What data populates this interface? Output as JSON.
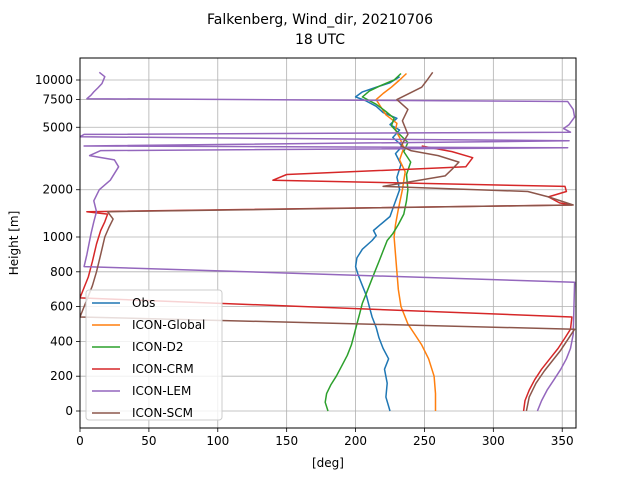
{
  "chart_data": {
    "type": "line",
    "title": "Falkenberg, Wind_dir, 20210706",
    "subtitle": "18 UTC",
    "xlabel": "[deg]",
    "ylabel": "Height [m]",
    "xlim": [
      0,
      360
    ],
    "x_ticks": [
      0,
      50,
      100,
      150,
      200,
      250,
      300,
      350
    ],
    "y_scale": "piecewise: linear 0-1000 m, logarithmic above 1000 m",
    "y_ticks": [
      0,
      200,
      400,
      600,
      800,
      1000,
      2000,
      5000,
      7500,
      10000
    ],
    "grid": true,
    "legend_position": "lower-left",
    "series": [
      {
        "name": "Obs",
        "color": "#1f77b4",
        "points": [
          [
            225,
            0
          ],
          [
            222,
            80
          ],
          [
            223,
            160
          ],
          [
            221,
            240
          ],
          [
            224,
            300
          ],
          [
            220,
            360
          ],
          [
            217,
            420
          ],
          [
            215,
            480
          ],
          [
            212,
            540
          ],
          [
            210,
            600
          ],
          [
            208,
            660
          ],
          [
            205,
            720
          ],
          [
            202,
            780
          ],
          [
            200,
            830
          ],
          [
            201,
            880
          ],
          [
            205,
            930
          ],
          [
            212,
            980
          ],
          [
            215,
            1020
          ],
          [
            213,
            1100
          ],
          [
            218,
            1200
          ],
          [
            225,
            1350
          ],
          [
            228,
            1600
          ],
          [
            232,
            2000
          ],
          [
            230,
            2400
          ],
          [
            233,
            2900
          ],
          [
            229,
            3400
          ],
          [
            234,
            3800
          ],
          [
            227,
            4300
          ],
          [
            232,
            4800
          ],
          [
            225,
            5200
          ],
          [
            230,
            5700
          ],
          [
            220,
            6200
          ],
          [
            215,
            6800
          ],
          [
            207,
            7400
          ],
          [
            200,
            7800
          ],
          [
            205,
            8400
          ],
          [
            215,
            9000
          ],
          [
            225,
            9600
          ],
          [
            232,
            10500
          ]
        ]
      },
      {
        "name": "ICON-Global",
        "color": "#ff7f0e",
        "points": [
          [
            258,
            0
          ],
          [
            258,
            100
          ],
          [
            257,
            200
          ],
          [
            253,
            300
          ],
          [
            248,
            380
          ],
          [
            243,
            440
          ],
          [
            238,
            500
          ],
          [
            235,
            560
          ],
          [
            233,
            600
          ],
          [
            231,
            700
          ],
          [
            230,
            800
          ],
          [
            229,
            900
          ],
          [
            228,
            1000
          ],
          [
            229,
            1200
          ],
          [
            231,
            1500
          ],
          [
            234,
            2000
          ],
          [
            236,
            2600
          ],
          [
            232,
            3100
          ],
          [
            235,
            3700
          ],
          [
            232,
            4300
          ],
          [
            229,
            4800
          ],
          [
            230,
            5300
          ],
          [
            222,
            6000
          ],
          [
            218,
            6800
          ],
          [
            215,
            7500
          ],
          [
            220,
            8200
          ],
          [
            226,
            9000
          ],
          [
            232,
            10000
          ],
          [
            237,
            11000
          ]
        ]
      },
      {
        "name": "ICON-D2",
        "color": "#2ca02c",
        "points": [
          [
            180,
            0
          ],
          [
            178,
            50
          ],
          [
            179,
            100
          ],
          [
            182,
            150
          ],
          [
            186,
            200
          ],
          [
            190,
            260
          ],
          [
            194,
            320
          ],
          [
            197,
            380
          ],
          [
            199,
            440
          ],
          [
            201,
            500
          ],
          [
            203,
            560
          ],
          [
            205,
            620
          ],
          [
            208,
            680
          ],
          [
            211,
            740
          ],
          [
            214,
            800
          ],
          [
            217,
            860
          ],
          [
            220,
            920
          ],
          [
            223,
            980
          ],
          [
            227,
            1050
          ],
          [
            231,
            1200
          ],
          [
            235,
            1400
          ],
          [
            237,
            1700
          ],
          [
            238,
            2000
          ],
          [
            237,
            2500
          ],
          [
            240,
            3000
          ],
          [
            235,
            3500
          ],
          [
            238,
            4000
          ],
          [
            232,
            4500
          ],
          [
            226,
            5100
          ],
          [
            228,
            5700
          ],
          [
            222,
            6300
          ],
          [
            215,
            7000
          ],
          [
            205,
            7800
          ],
          [
            210,
            8500
          ],
          [
            218,
            9200
          ],
          [
            228,
            10000
          ],
          [
            233,
            11000
          ]
        ]
      },
      {
        "name": "ICON-CRM",
        "color": "#d62728",
        "points": [
          [
            322,
            0
          ],
          [
            323,
            60
          ],
          [
            326,
            120
          ],
          [
            330,
            180
          ],
          [
            335,
            240
          ],
          [
            341,
            300
          ],
          [
            347,
            360
          ],
          [
            352,
            420
          ],
          [
            356,
            470
          ],
          [
            357,
            540
          ],
          [
            0,
            650
          ],
          [
            3,
            710
          ],
          [
            6,
            770
          ],
          [
            9,
            860
          ],
          [
            12,
            960
          ],
          [
            15,
            1100
          ],
          [
            18,
            1250
          ],
          [
            20,
            1400
          ],
          [
            5,
            1450
          ],
          [
            357,
            1600
          ],
          [
            348,
            1650
          ],
          [
            340,
            1800
          ],
          [
            353,
            1950
          ],
          [
            352,
            2100
          ],
          [
            140,
            2300
          ],
          [
            150,
            2500
          ],
          [
            280,
            2800
          ],
          [
            285,
            3200
          ],
          [
            270,
            3500
          ],
          [
            248,
            3800
          ]
        ]
      },
      {
        "name": "ICON-LEM",
        "color": "#9467bd",
        "points": [
          [
            332,
            0
          ],
          [
            335,
            60
          ],
          [
            339,
            120
          ],
          [
            344,
            180
          ],
          [
            349,
            240
          ],
          [
            353,
            300
          ],
          [
            356,
            360
          ],
          [
            358,
            440
          ],
          [
            359,
            740
          ],
          [
            3,
            830
          ],
          [
            5,
            900
          ],
          [
            8,
            1050
          ],
          [
            10,
            1250
          ],
          [
            12,
            1450
          ],
          [
            10,
            1700
          ],
          [
            14,
            2000
          ],
          [
            22,
            2300
          ],
          [
            28,
            2800
          ],
          [
            25,
            3100
          ],
          [
            7,
            3300
          ],
          [
            15,
            3550
          ],
          [
            354,
            3700
          ],
          [
            3,
            3800
          ],
          [
            355,
            4100
          ],
          [
            0,
            4350
          ],
          [
            3,
            4500
          ],
          [
            356,
            4650
          ],
          [
            351,
            4900
          ],
          [
            355,
            5200
          ],
          [
            359,
            5800
          ],
          [
            358,
            6500
          ],
          [
            354,
            7300
          ],
          [
            5,
            7600
          ],
          [
            8,
            8000
          ],
          [
            10,
            8400
          ],
          [
            13,
            8900
          ],
          [
            16,
            9500
          ],
          [
            18,
            10500
          ],
          [
            14,
            11200
          ]
        ]
      },
      {
        "name": "ICON-SCM",
        "color": "#8c564b",
        "points": [
          [
            324,
            0
          ],
          [
            326,
            80
          ],
          [
            331,
            160
          ],
          [
            337,
            230
          ],
          [
            343,
            290
          ],
          [
            349,
            350
          ],
          [
            354,
            410
          ],
          [
            359,
            470
          ],
          [
            0,
            540
          ],
          [
            3,
            600
          ],
          [
            6,
            660
          ],
          [
            9,
            720
          ],
          [
            12,
            800
          ],
          [
            15,
            900
          ],
          [
            18,
            1000
          ],
          [
            21,
            1150
          ],
          [
            24,
            1300
          ],
          [
            20,
            1450
          ],
          [
            358,
            1600
          ],
          [
            340,
            1800
          ],
          [
            325,
            1950
          ],
          [
            220,
            2100
          ],
          [
            265,
            2450
          ],
          [
            270,
            2700
          ],
          [
            275,
            3000
          ],
          [
            260,
            3300
          ],
          [
            240,
            3550
          ],
          [
            233,
            3800
          ],
          [
            238,
            4500
          ],
          [
            234,
            5500
          ],
          [
            238,
            6500
          ],
          [
            230,
            7500
          ],
          [
            240,
            8300
          ],
          [
            248,
            9000
          ],
          [
            252,
            10000
          ],
          [
            256,
            11200
          ]
        ]
      }
    ]
  }
}
